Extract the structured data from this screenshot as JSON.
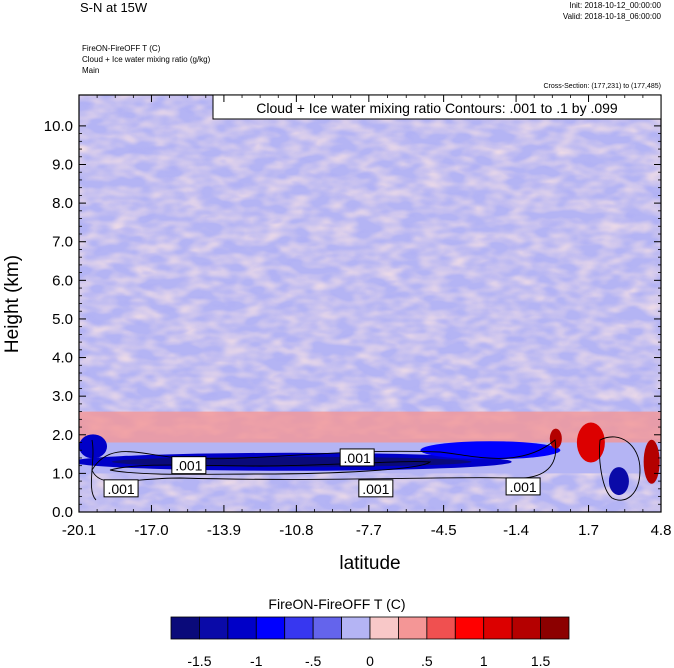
{
  "header": {
    "title": "S-N at 15W",
    "init": "Init: 2018-10-12_00:00:00",
    "valid": "Valid: 2018-10-18_06:00:00",
    "field1": "FireON-FireOFF T   (C)",
    "field2": "Cloud + Ice water mixing ratio   (g/kg)",
    "field3": "Main",
    "cross_section": "Cross-Section: (177,231) to (177,485)",
    "contour_note": "Cloud + Ice water mixing ratio Contours: .001 to .1 by .099"
  },
  "colors": {
    "palette": [
      "#0a0a7a",
      "#0a0aa8",
      "#0000c8",
      "#0000ff",
      "#3737f0",
      "#6464ec",
      "#b4b4f4",
      "#f8c8c8",
      "#f49696",
      "#f05050",
      "#ff0000",
      "#dc0000",
      "#b40000",
      "#8c0000"
    ]
  },
  "chart_data": {
    "type": "heatmap",
    "title": "S-N at 15W",
    "xlabel": "latitude",
    "ylabel": "Height (km)",
    "xlim": [
      -20.1,
      4.8
    ],
    "ylim": [
      0.0,
      10.8
    ],
    "x_ticks": [
      -20.1,
      -17.0,
      -13.9,
      -10.8,
      -7.7,
      -4.5,
      -1.4,
      1.7,
      4.8
    ],
    "x_tick_labels": [
      "-20.1",
      "-17.0",
      "-13.9",
      "-10.8",
      "-7.7",
      "-4.5",
      "-1.4",
      "1.7",
      "4.8"
    ],
    "y_ticks": [
      0,
      1,
      2,
      3,
      4,
      5,
      6,
      7,
      8,
      9,
      10
    ],
    "y_tick_labels": [
      "0.0",
      "1.0",
      "2.0",
      "3.0",
      "4.0",
      "5.0",
      "6.0",
      "7.0",
      "8.0",
      "9.0",
      "10.0"
    ],
    "colorbar": {
      "title": "FireON-FireOFF  T   (C)",
      "levels": [
        -1.75,
        -1.5,
        -1.25,
        -1,
        -0.75,
        -0.5,
        -0.25,
        0,
        0.25,
        0.5,
        0.75,
        1,
        1.25,
        1.5,
        1.75
      ],
      "labels": [
        "-1.5",
        "-1",
        "-.5",
        "0",
        ".5",
        "1",
        "1.5"
      ],
      "label_values": [
        -1.5,
        -1,
        -0.5,
        0,
        0.5,
        1,
        1.5
      ]
    },
    "contour_labels": [
      {
        "text": ".001",
        "x": -15.4,
        "y": 1.2
      },
      {
        "text": ".001",
        "x": -8.2,
        "y": 1.4
      },
      {
        "text": ".001",
        "x": -18.3,
        "y": 0.6
      },
      {
        "text": ".001",
        "x": -7.4,
        "y": 0.6
      },
      {
        "text": ".001",
        "x": -1.1,
        "y": 0.65
      }
    ]
  }
}
